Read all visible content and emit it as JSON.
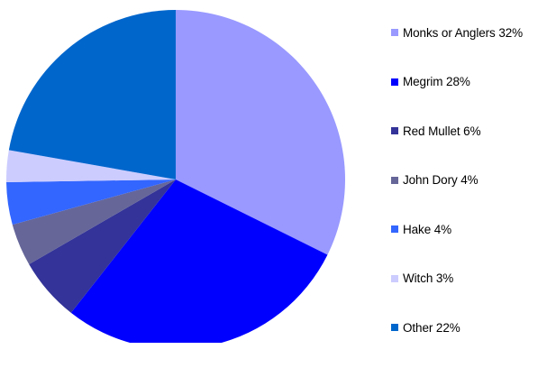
{
  "chart_data": {
    "type": "pie",
    "slices": [
      {
        "label": "Monks or Anglers 32%",
        "value": 32,
        "color": "#9999ff"
      },
      {
        "label": "Megrim 28%",
        "value": 28,
        "color": "#0000ff"
      },
      {
        "label": "Red Mullet 6%",
        "value": 6,
        "color": "#333399"
      },
      {
        "label": "John Dory 4%",
        "value": 4,
        "color": "#666699"
      },
      {
        "label": "Hake 4%",
        "value": 4,
        "color": "#3366ff"
      },
      {
        "label": "Witch 3%",
        "value": 3,
        "color": "#ccccff"
      },
      {
        "label": "Other 22%",
        "value": 22,
        "color": "#0066cc"
      }
    ],
    "legend_position": "right",
    "start": "top, clockwise"
  }
}
